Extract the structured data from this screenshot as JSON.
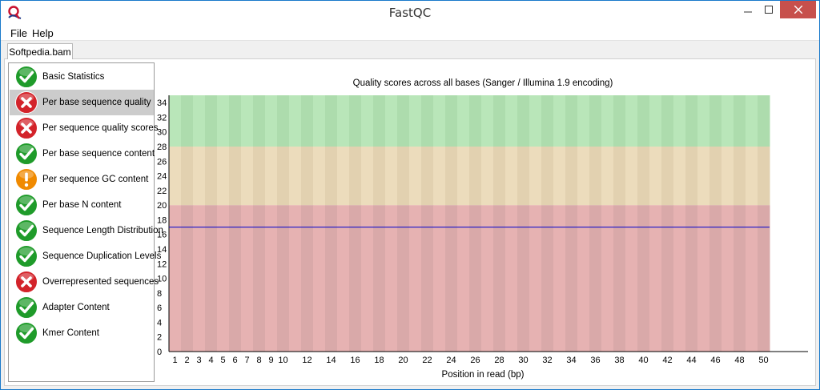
{
  "window": {
    "title": "FastQC",
    "icon": "fastqc-logo-icon",
    "controls": [
      "minimize-icon",
      "maximize-icon",
      "close-icon"
    ]
  },
  "menu": {
    "items": [
      "File",
      "Help"
    ]
  },
  "tab": {
    "label": "Softpedia.bam"
  },
  "modules": [
    {
      "label": "Basic Statistics",
      "status": "pass"
    },
    {
      "label": "Per base sequence quality",
      "status": "fail",
      "selected": true
    },
    {
      "label": "Per sequence quality scores",
      "status": "fail"
    },
    {
      "label": "Per base sequence content",
      "status": "pass"
    },
    {
      "label": "Per sequence GC content",
      "status": "warn"
    },
    {
      "label": "Per base N content",
      "status": "pass"
    },
    {
      "label": "Sequence Length Distribution",
      "status": "pass"
    },
    {
      "label": "Sequence Duplication Levels",
      "status": "pass"
    },
    {
      "label": "Overrepresented sequences",
      "status": "fail"
    },
    {
      "label": "Adapter Content",
      "status": "pass"
    },
    {
      "label": "Kmer Content",
      "status": "pass"
    }
  ],
  "status_colors": {
    "pass": "#1f9b2a",
    "fail": "#d3232a",
    "warn": "#f08a00"
  },
  "chart_data": {
    "type": "line",
    "title": "Quality scores across all bases (Sanger / Illumina 1.9 encoding)",
    "xlabel": "Position in read (bp)",
    "ylabel": "",
    "ylim": [
      0,
      35
    ],
    "yticks": [
      "0",
      "2",
      "4",
      "6",
      "8",
      "10",
      "12",
      "14",
      "16",
      "18",
      "20",
      "22",
      "24",
      "26",
      "28",
      "30",
      "32",
      "34"
    ],
    "xticks": [
      "1",
      "2",
      "3",
      "4",
      "5",
      "6",
      "7",
      "8",
      "9",
      "10",
      "12",
      "14",
      "16",
      "18",
      "20",
      "22",
      "24",
      "26",
      "28",
      "30",
      "32",
      "34",
      "36",
      "38",
      "40",
      "42",
      "44",
      "46",
      "48",
      "50"
    ],
    "bands": [
      {
        "from": 0,
        "to": 20,
        "color": "#e6b2b2",
        "alt_color": "#d9a9a9"
      },
      {
        "from": 20,
        "to": 28,
        "color": "#ecdcbc",
        "alt_color": "#e2d1b0"
      },
      {
        "from": 28,
        "to": 35,
        "color": "#b9e6b9",
        "alt_color": "#addcad"
      }
    ],
    "series": [
      {
        "color": "#0000cc",
        "x": [
          1,
          50
        ],
        "y": [
          17,
          17
        ]
      }
    ]
  }
}
